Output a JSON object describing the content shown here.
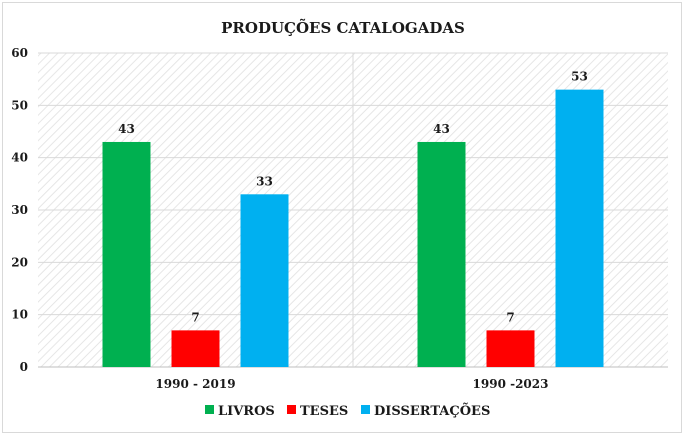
{
  "chart_data": {
    "type": "bar",
    "title": "PRODUÇÕES CATALOGADAS",
    "categories": [
      "1990 - 2019",
      "1990 -2023"
    ],
    "series": [
      {
        "name": "LIVROS",
        "values": [
          43,
          43
        ],
        "color": "#00b050"
      },
      {
        "name": "TESES",
        "values": [
          7,
          7
        ],
        "color": "#ff0000"
      },
      {
        "name": "DISSERTAÇÕES",
        "values": [
          33,
          53
        ],
        "color": "#00b0f0"
      }
    ],
    "ylim": [
      0,
      60
    ],
    "yticks": [
      0,
      10,
      20,
      30,
      40,
      50,
      60
    ],
    "grid": true,
    "legend_position": "bottom",
    "xlabel": "",
    "ylabel": ""
  }
}
